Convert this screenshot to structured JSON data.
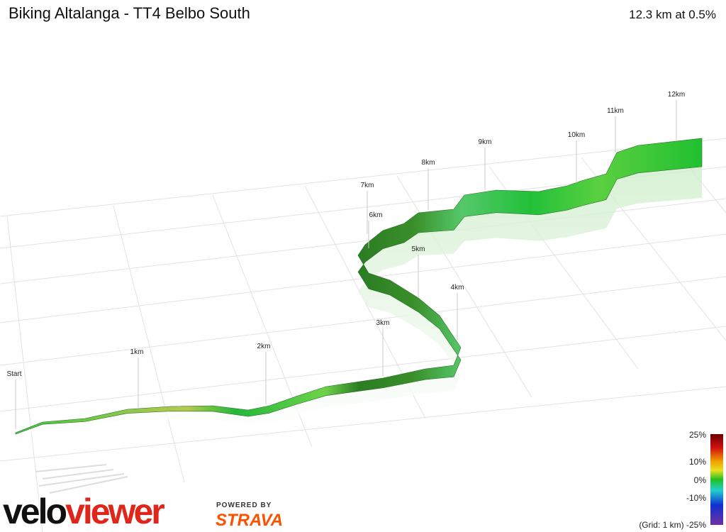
{
  "header": {
    "title": "Biking Altalanga - TT4 Belbo South",
    "summary": "12.3 km at 0.5%"
  },
  "markers": [
    "Start",
    "1km",
    "2km",
    "3km",
    "4km",
    "5km",
    "6km",
    "7km",
    "8km",
    "9km",
    "10km",
    "11km",
    "12km"
  ],
  "legend": {
    "labels": [
      "25%",
      "10%",
      "0%",
      "-10%",
      "(Grid: 1 km) -25%"
    ]
  },
  "logo": {
    "part1": "velo",
    "part2": "viewer",
    "powered": "POWERED BY",
    "strava": "STRAVA"
  }
}
